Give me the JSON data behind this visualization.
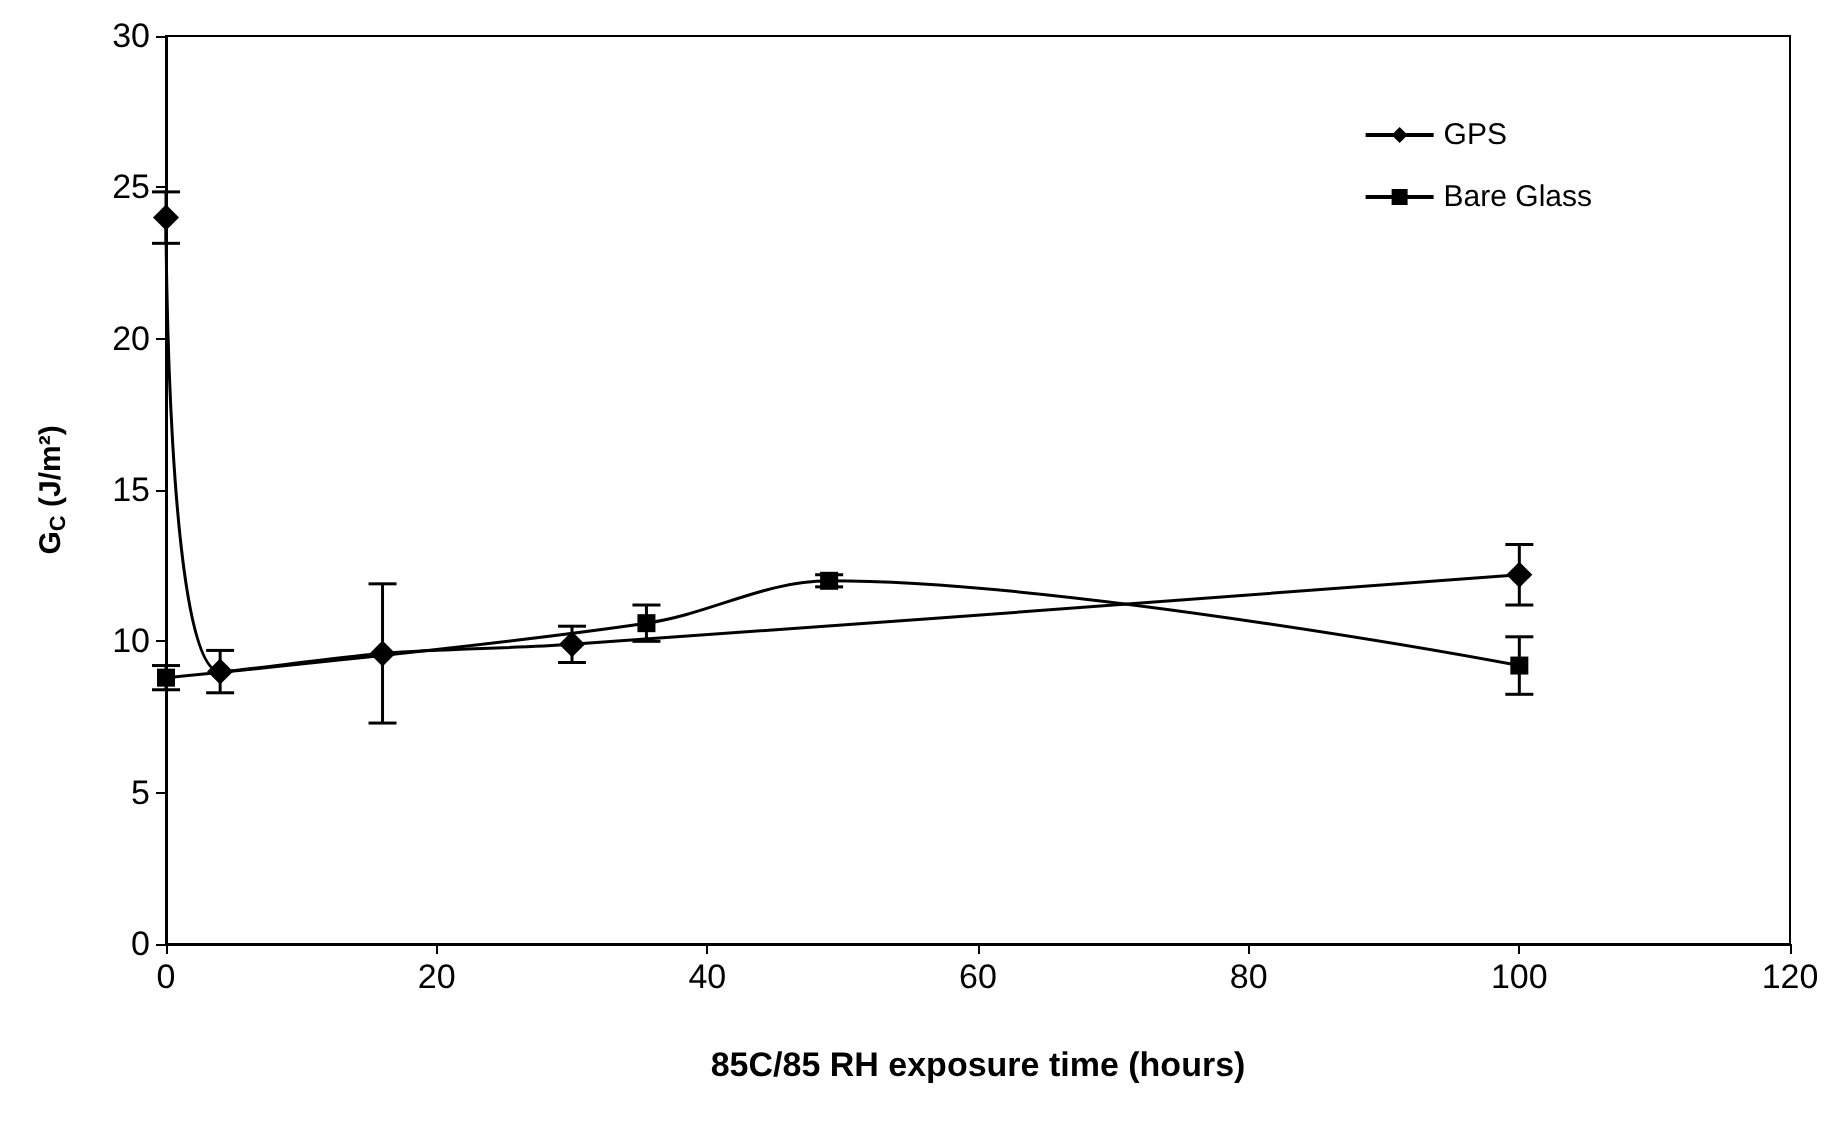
{
  "chart_data": {
    "type": "line",
    "xlabel": "85C/85 RH exposure time (hours)",
    "ylabel": "G$_{C}$ (J/m²)",
    "xlim": [
      0,
      120
    ],
    "xticks": [
      0,
      20,
      40,
      60,
      80,
      100,
      120
    ],
    "ylim": [
      0,
      30
    ],
    "yticks": [
      0,
      5,
      10,
      15,
      20,
      25,
      30
    ],
    "grid": false,
    "legend": "top right",
    "series": [
      {
        "name": "GPS",
        "color": "#000000",
        "marker": "diamond",
        "x": [
          0,
          4,
          16,
          30,
          100
        ],
        "values": [
          24,
          9.0,
          9.6,
          9.9,
          12.2
        ],
        "errors": [
          0.85,
          0.7,
          2.3,
          0.6,
          1.0
        ]
      },
      {
        "name": "Bare Glass",
        "color": "#000000",
        "marker": "square",
        "x": [
          0,
          35.5,
          49,
          100
        ],
        "values": [
          8.8,
          10.6,
          12.0,
          9.2
        ],
        "errors": [
          0.4,
          0.6,
          0.2,
          0.95
        ]
      }
    ]
  }
}
